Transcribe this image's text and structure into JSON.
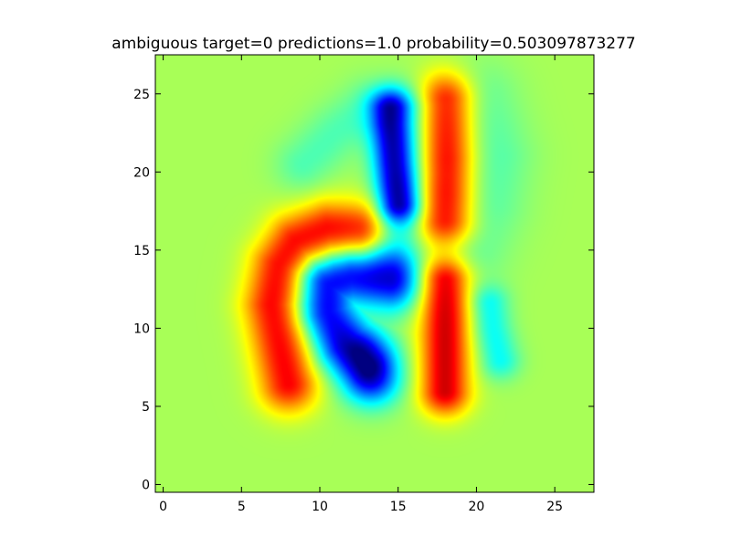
{
  "chart_data": {
    "type": "heatmap",
    "title": "ambiguous target=0 predictions=1.0 probability=0.503097873277",
    "xlabel": "",
    "ylabel": "",
    "grid": false,
    "colormap": "jet",
    "colormap_stops": [
      "#00007f",
      "#0000ff",
      "#00ffff",
      "#7fff7f",
      "#ffff00",
      "#ff0000",
      "#7f0000"
    ],
    "background_color": "#e5ff1a",
    "xlim": [
      -0.5,
      27.5
    ],
    "ylim": [
      27.5,
      -0.5
    ],
    "x_ticks": [
      0,
      5,
      10,
      15,
      20,
      25
    ],
    "y_ticks": [
      0,
      5,
      10,
      15,
      20,
      25
    ],
    "x_tick_labels": [
      "0",
      "5",
      "10",
      "15",
      "20",
      "25"
    ],
    "y_tick_labels": [
      "0",
      "5",
      "10",
      "15",
      "20",
      "25"
    ],
    "grid_size": [
      28,
      28
    ],
    "baseline_value": 0.54,
    "features": [
      {
        "kind": "stroke",
        "points": [
          [
            8.0,
            6.5
          ],
          [
            7.5,
            9.0
          ],
          [
            7.0,
            11.5
          ],
          [
            7.5,
            14.0
          ],
          [
            8.5,
            15.5
          ],
          [
            10.5,
            16.3
          ],
          [
            12.5,
            16.2
          ]
        ],
        "value": 0.88,
        "width": 1.3
      },
      {
        "kind": "stroke",
        "points": [
          [
            13.0,
            7.5
          ],
          [
            11.5,
            9.0
          ],
          [
            10.5,
            11.0
          ],
          [
            10.5,
            12.8
          ],
          [
            12.0,
            13.3
          ],
          [
            14.5,
            13.0
          ]
        ],
        "value": 0.12,
        "width": 1.3
      },
      {
        "kind": "stroke",
        "points": [
          [
            18.0,
            6.0
          ],
          [
            18.0,
            8.5
          ],
          [
            18.0,
            11.0
          ],
          [
            18.0,
            13.0
          ]
        ],
        "value": 0.92,
        "width": 1.1
      },
      {
        "kind": "stroke",
        "points": [
          [
            18.0,
            17.0
          ],
          [
            18.0,
            19.5
          ],
          [
            18.0,
            22.0
          ],
          [
            18.0,
            24.5
          ]
        ],
        "value": 0.92,
        "width": 1.3
      },
      {
        "kind": "stroke",
        "points": [
          [
            15.0,
            18.0
          ],
          [
            14.7,
            20.5
          ],
          [
            14.5,
            23.0
          ],
          [
            14.5,
            24.0
          ]
        ],
        "value": 0.12,
        "width": 0.9
      },
      {
        "kind": "stroke",
        "points": [
          [
            21.5,
            8.0
          ],
          [
            21.0,
            10.0
          ],
          [
            20.8,
            11.5
          ]
        ],
        "value": 0.38,
        "width": 0.9
      },
      {
        "kind": "stroke",
        "points": [
          [
            13.5,
            6.5
          ],
          [
            13.0,
            8.5
          ]
        ],
        "value": 0.38,
        "width": 1.2
      },
      {
        "kind": "stroke",
        "points": [
          [
            14.5,
            15.0
          ],
          [
            15.5,
            17.5
          ],
          [
            16.0,
            20.0
          ],
          [
            16.0,
            24.0
          ]
        ],
        "value": 0.4,
        "width": 1.3
      },
      {
        "kind": "stroke",
        "points": [
          [
            19.5,
            15.5
          ],
          [
            20.5,
            18.0
          ],
          [
            21.0,
            21.0
          ],
          [
            20.0,
            24.5
          ]
        ],
        "value": 0.45,
        "width": 1.8
      },
      {
        "kind": "stroke",
        "points": [
          [
            9.0,
            20.5
          ],
          [
            11.0,
            22.5
          ],
          [
            13.0,
            24.0
          ]
        ],
        "value": 0.45,
        "width": 1.3
      }
    ]
  }
}
